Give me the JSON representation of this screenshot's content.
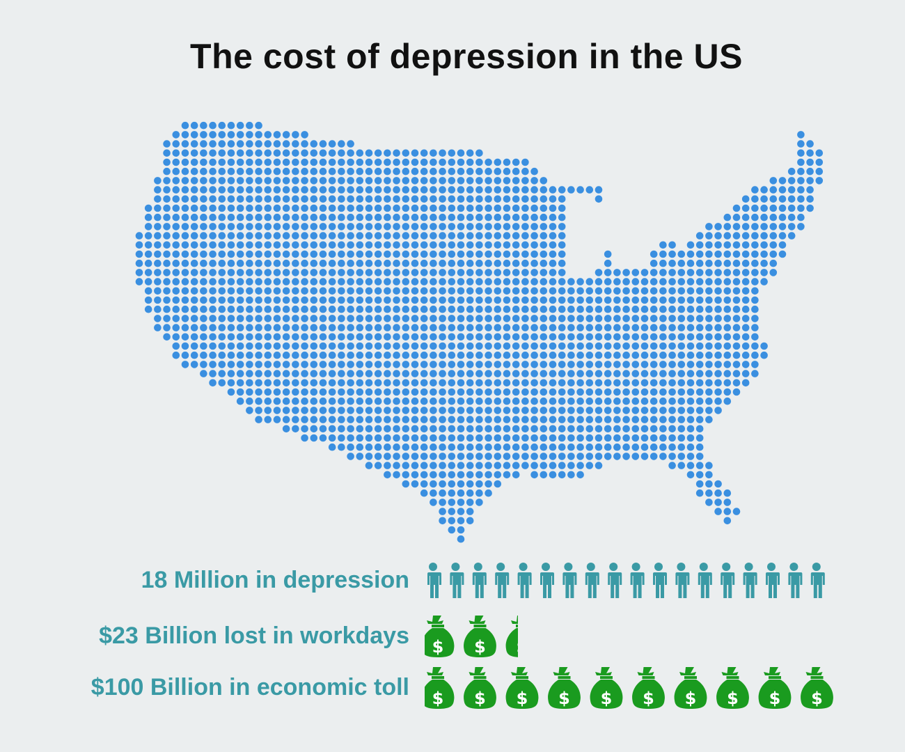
{
  "title": "The cost of depression in the US",
  "colors": {
    "background": "#ebeeef",
    "map_dots": "#3a8fe0",
    "label_text": "#3a9aa5",
    "people_icon": "#3a9aa5",
    "money_bag": "#1a9b1f"
  },
  "map": {
    "subject": "contiguous United States",
    "style": "dot-matrix",
    "icon": "us-map-icon"
  },
  "stats": [
    {
      "label": "18 Million in depression",
      "icon": "person-icon",
      "icon_count": 18
    },
    {
      "label": "$23 Billion lost in workdays",
      "icon": "money-bag-icon",
      "icon_count": 2.3
    },
    {
      "label": "$100 Billion in economic toll",
      "icon": "money-bag-icon",
      "icon_count": 10
    }
  ]
}
